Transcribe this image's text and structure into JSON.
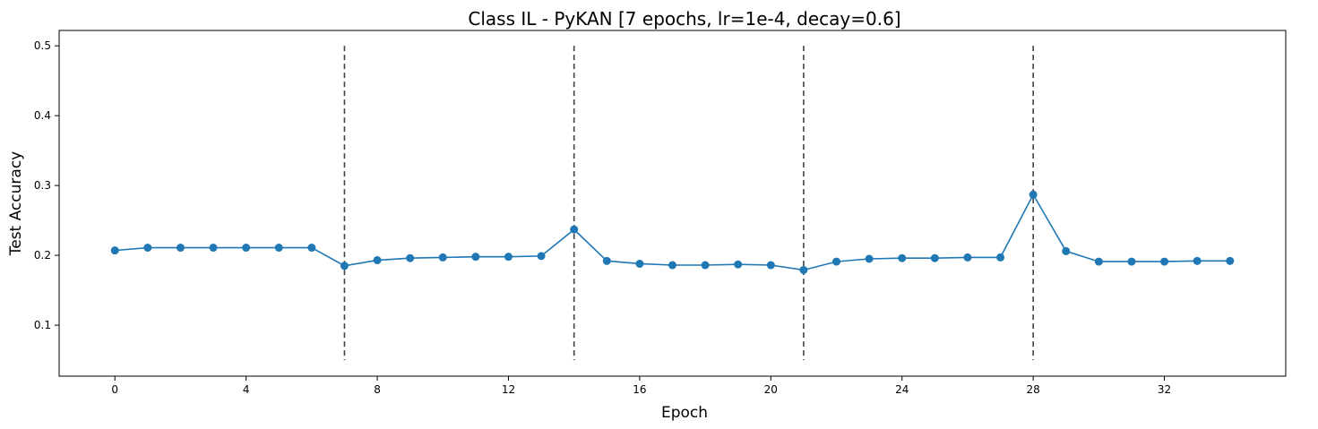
{
  "chart_data": {
    "type": "line",
    "title": "Class IL - PyKAN [7 epochs, lr=1e-4, decay=0.6]",
    "xlabel": "Epoch",
    "ylabel": "Test Accuracy",
    "xlim": [
      -1.7,
      35.7
    ],
    "ylim": [
      0.027,
      0.522
    ],
    "xticks": [
      0,
      4,
      8,
      12,
      16,
      20,
      24,
      28,
      32
    ],
    "yticks": [
      0.1,
      0.2,
      0.3,
      0.4,
      0.5
    ],
    "grid": false,
    "series": [
      {
        "color": "#1f77b4",
        "marker": "circle",
        "x": [
          0,
          1,
          2,
          3,
          4,
          5,
          6,
          7,
          8,
          9,
          10,
          11,
          12,
          13,
          14,
          15,
          16,
          17,
          18,
          19,
          20,
          21,
          22,
          23,
          24,
          25,
          26,
          27,
          28,
          29,
          30,
          31,
          32,
          33,
          34
        ],
        "y": [
          0.207,
          0.211,
          0.211,
          0.211,
          0.211,
          0.211,
          0.211,
          0.185,
          0.193,
          0.196,
          0.197,
          0.198,
          0.198,
          0.199,
          0.237,
          0.192,
          0.188,
          0.186,
          0.186,
          0.187,
          0.186,
          0.179,
          0.191,
          0.195,
          0.196,
          0.196,
          0.197,
          0.197,
          0.287,
          0.206,
          0.191,
          0.191,
          0.191,
          0.192,
          0.192
        ]
      }
    ],
    "task_boundaries": {
      "x": [
        7,
        14,
        21,
        28
      ],
      "ymin": 0.05,
      "ymax": 0.5,
      "color": "#404040",
      "style": "dashed"
    }
  }
}
